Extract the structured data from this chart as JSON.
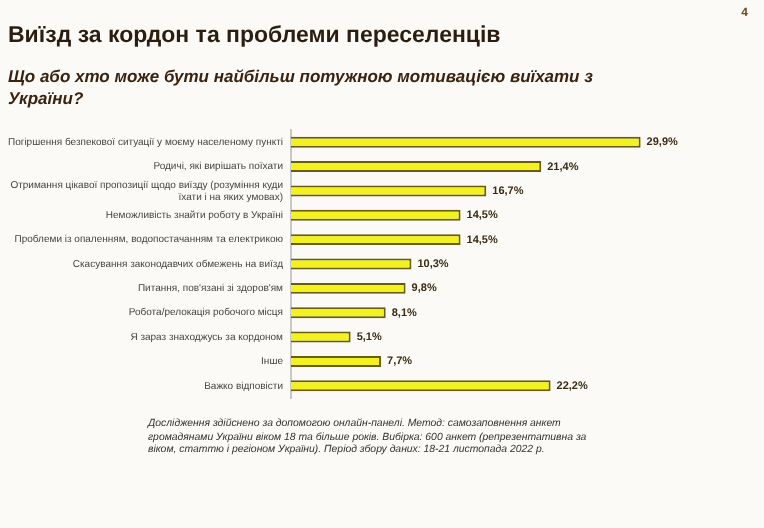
{
  "chart_data": {
    "type": "bar",
    "orientation": "horizontal",
    "title": "Виїзд за кордон та проблеми переселенців",
    "subtitle": "Що або хто може бути найбільш потужною мотивацією виїхати з України?",
    "categories": [
      "Погіршення безпекової ситуації у моєму населеному пункті",
      "Родичі, які вирішать поїхати",
      "Отримання цікавої пропозиції щодо виїзду (розуміння куди їхати і на яких умовах)",
      "Неможливість знайти роботу в Україні",
      "Проблеми із опаленням, водопостачанням та електрикою",
      "Скасування законодавчих обмежень на виїзд",
      "Питання, пов'язані зі здоров'ям",
      "Робота/релокація робочого місця",
      "Я зараз знаходжусь за кордоном",
      "Інше",
      "Важко відповісти"
    ],
    "values": [
      29.9,
      21.4,
      16.7,
      14.5,
      14.5,
      10.3,
      9.8,
      8.1,
      5.1,
      7.7,
      22.2
    ],
    "value_labels": [
      "29,9%",
      "21,4%",
      "16,7%",
      "14,5%",
      "14,5%",
      "10,3%",
      "9,8%",
      "8,1%",
      "5,1%",
      "7,7%",
      "22,2%"
    ],
    "color": "#f2f21e",
    "legend": false,
    "annotations": [
      "4",
      "Дослідження здійснено за допомогою онлайн-панелі. Метод: самозаповнення анкет громадянами України віком 18 та більше років. Вибірка: 600 анкет (репрезентативна за віком, статтю і регіоном України). Період збору даних: 18-21 листопада 2022 р."
    ]
  }
}
